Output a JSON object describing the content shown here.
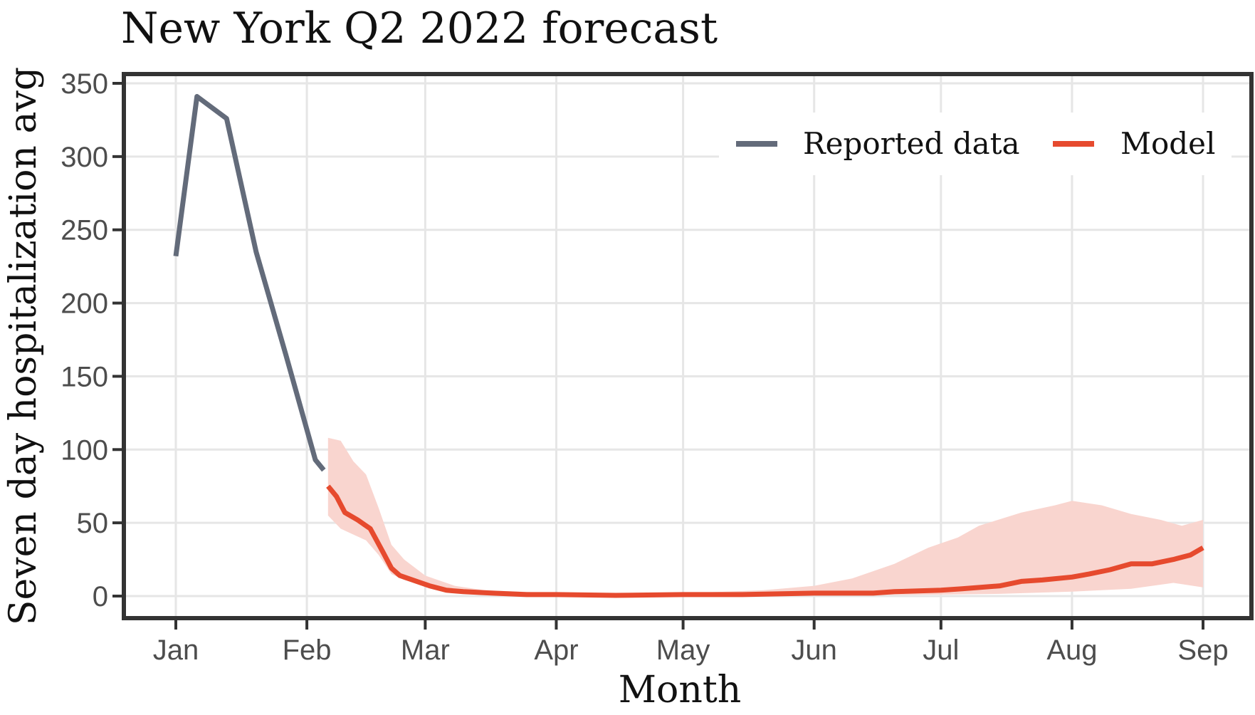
{
  "chart_data": {
    "type": "line",
    "title": "New York Q2 2022 forecast",
    "xlabel": "Month",
    "ylabel": "Seven day hospitalization avg",
    "ylim": [
      0,
      350
    ],
    "xlim": [
      "2022-01-01",
      "2022-09-01"
    ],
    "yticks": [
      0,
      50,
      100,
      150,
      200,
      250,
      300,
      350
    ],
    "xticks": [
      {
        "date": "2022-01-01",
        "label": "Jan"
      },
      {
        "date": "2022-02-01",
        "label": "Feb"
      },
      {
        "date": "2022-03-01",
        "label": "Mar"
      },
      {
        "date": "2022-04-01",
        "label": "Apr"
      },
      {
        "date": "2022-05-01",
        "label": "May"
      },
      {
        "date": "2022-06-01",
        "label": "Jun"
      },
      {
        "date": "2022-07-01",
        "label": "Jul"
      },
      {
        "date": "2022-08-01",
        "label": "Aug"
      },
      {
        "date": "2022-09-01",
        "label": "Sep"
      }
    ],
    "grid": true,
    "legend_position": "top-right",
    "series": [
      {
        "name": "Reported data",
        "color": "#636b7a",
        "points": [
          [
            "2022-01-01",
            232
          ],
          [
            "2022-01-06",
            341
          ],
          [
            "2022-01-13",
            326
          ],
          [
            "2022-01-20",
            235
          ],
          [
            "2022-01-27",
            165
          ],
          [
            "2022-02-03",
            93
          ],
          [
            "2022-02-05",
            86
          ]
        ]
      },
      {
        "name": "Model",
        "color": "#e64a2e",
        "band_color": "#f9d5cf",
        "points": [
          [
            "2022-02-06",
            75
          ],
          [
            "2022-02-08",
            68
          ],
          [
            "2022-02-10",
            57
          ],
          [
            "2022-02-13",
            52
          ],
          [
            "2022-02-16",
            46
          ],
          [
            "2022-02-19",
            30
          ],
          [
            "2022-02-21",
            19
          ],
          [
            "2022-02-23",
            14
          ],
          [
            "2022-02-27",
            10
          ],
          [
            "2022-03-02",
            7
          ],
          [
            "2022-03-06",
            4
          ],
          [
            "2022-03-10",
            3
          ],
          [
            "2022-03-17",
            2
          ],
          [
            "2022-03-25",
            1
          ],
          [
            "2022-04-01",
            1
          ],
          [
            "2022-04-15",
            0.5
          ],
          [
            "2022-05-01",
            1
          ],
          [
            "2022-05-15",
            1
          ],
          [
            "2022-06-01",
            2
          ],
          [
            "2022-06-15",
            2
          ],
          [
            "2022-06-20",
            3
          ],
          [
            "2022-07-01",
            4
          ],
          [
            "2022-07-06",
            5
          ],
          [
            "2022-07-15",
            7
          ],
          [
            "2022-07-20",
            10
          ],
          [
            "2022-07-25",
            11
          ],
          [
            "2022-08-01",
            13
          ],
          [
            "2022-08-05",
            15
          ],
          [
            "2022-08-10",
            18
          ],
          [
            "2022-08-15",
            22
          ],
          [
            "2022-08-20",
            22
          ],
          [
            "2022-08-25",
            25
          ],
          [
            "2022-08-29",
            28
          ],
          [
            "2022-09-01",
            33
          ]
        ],
        "upper": [
          [
            "2022-02-06",
            108
          ],
          [
            "2022-02-09",
            106
          ],
          [
            "2022-02-12",
            92
          ],
          [
            "2022-02-15",
            83
          ],
          [
            "2022-02-18",
            60
          ],
          [
            "2022-02-21",
            35
          ],
          [
            "2022-02-24",
            25
          ],
          [
            "2022-03-01",
            14
          ],
          [
            "2022-03-08",
            7
          ],
          [
            "2022-03-15",
            4
          ],
          [
            "2022-04-01",
            2
          ],
          [
            "2022-05-01",
            2
          ],
          [
            "2022-05-20",
            4
          ],
          [
            "2022-06-01",
            7
          ],
          [
            "2022-06-10",
            12
          ],
          [
            "2022-06-20",
            22
          ],
          [
            "2022-06-28",
            33
          ],
          [
            "2022-07-05",
            40
          ],
          [
            "2022-07-10",
            48
          ],
          [
            "2022-07-20",
            57
          ],
          [
            "2022-07-28",
            62
          ],
          [
            "2022-08-01",
            65
          ],
          [
            "2022-08-08",
            62
          ],
          [
            "2022-08-15",
            56
          ],
          [
            "2022-08-22",
            52
          ],
          [
            "2022-08-27",
            48
          ],
          [
            "2022-09-01",
            52
          ]
        ],
        "lower": [
          [
            "2022-02-06",
            55
          ],
          [
            "2022-02-09",
            46
          ],
          [
            "2022-02-12",
            42
          ],
          [
            "2022-02-15",
            38
          ],
          [
            "2022-02-18",
            28
          ],
          [
            "2022-02-21",
            15
          ],
          [
            "2022-02-24",
            11
          ],
          [
            "2022-03-01",
            7
          ],
          [
            "2022-03-08",
            3
          ],
          [
            "2022-03-15",
            2
          ],
          [
            "2022-04-01",
            0.5
          ],
          [
            "2022-06-01",
            0.5
          ],
          [
            "2022-07-01",
            1
          ],
          [
            "2022-07-15",
            1.5
          ],
          [
            "2022-08-01",
            3
          ],
          [
            "2022-08-15",
            5
          ],
          [
            "2022-08-25",
            9
          ],
          [
            "2022-09-01",
            6
          ]
        ]
      }
    ]
  }
}
